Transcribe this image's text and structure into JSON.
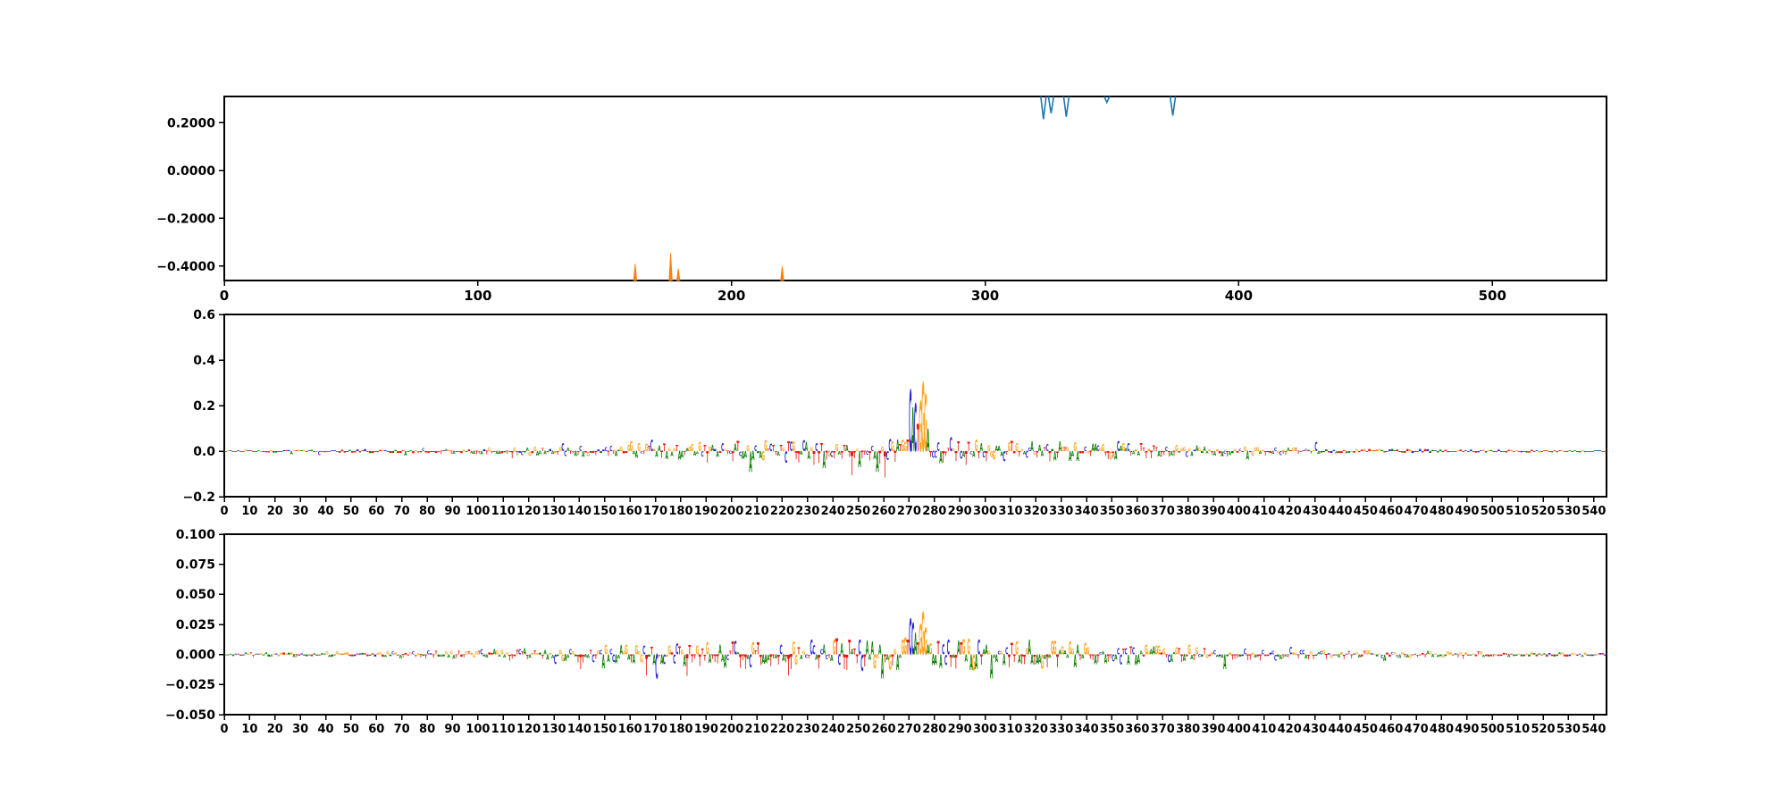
{
  "figure": {
    "title": "",
    "background": "#ffffff",
    "text_color": "#000000",
    "spine_color": "#000000"
  },
  "chart_data": {
    "type": "area",
    "description": "Three stacked panels: clipped importance traces (top) and two DNA sequence-attribution letter logos (middle, bottom)",
    "letter_colors": {
      "A": "#0b8000",
      "C": "#2222d0",
      "G": "#ffa41b",
      "T": "#e8160c"
    },
    "subplots": [
      {
        "kind": "spikes",
        "xlim": [
          0,
          545
        ],
        "ylim": [
          -0.46,
          0.31
        ],
        "xticks": [
          0,
          100,
          200,
          300,
          400,
          500
        ],
        "yticks": [
          0.2,
          0.0,
          -0.2,
          -0.4
        ],
        "ytick_labels": [
          "0.2000",
          "0.0000",
          "−0.2000",
          "−0.4000"
        ],
        "xtick_font": 15,
        "ytick_font": 14,
        "series": [
          {
            "name": "blue-trace-clipped-top",
            "color": "#1f77b4",
            "clip": "top",
            "dips": [
              {
                "x": 323,
                "v": 0.215
              },
              {
                "x": 326,
                "v": 0.24
              },
              {
                "x": 332,
                "v": 0.225
              },
              {
                "x": 348,
                "v": 0.285
              },
              {
                "x": 374,
                "v": 0.23
              }
            ]
          },
          {
            "name": "orange-trace-clipped-bottom",
            "color": "#ff7f0e",
            "clip": "bottom",
            "spikes": [
              {
                "x": 162,
                "v": -0.39
              },
              {
                "x": 176,
                "v": -0.345
              },
              {
                "x": 179,
                "v": -0.41
              },
              {
                "x": 220,
                "v": -0.4
              }
            ]
          }
        ]
      },
      {
        "kind": "logo",
        "xlim": [
          0,
          545
        ],
        "ylim": [
          -0.2,
          0.6
        ],
        "xticks": [
          0,
          10,
          20,
          30,
          40,
          50,
          60,
          70,
          80,
          90,
          100,
          110,
          120,
          130,
          140,
          150,
          160,
          170,
          180,
          190,
          200,
          210,
          220,
          230,
          240,
          250,
          260,
          270,
          280,
          290,
          300,
          310,
          320,
          330,
          340,
          350,
          360,
          370,
          380,
          390,
          400,
          410,
          420,
          430,
          440,
          450,
          460,
          470,
          480,
          490,
          500,
          510,
          520,
          530,
          540
        ],
        "yticks": [
          0.6,
          0.4,
          0.2,
          0.0,
          -0.2
        ],
        "ytick_labels": [
          "0.6",
          "0.4",
          "0.2",
          "0.0",
          "−0.2"
        ],
        "xtick_font": 13,
        "ytick_font": 14,
        "noise": {
          "seed": 11,
          "len": 545,
          "center": 265,
          "sigma": 130,
          "base": 0.003,
          "mid": 0.03,
          "spike_chance": 0.035,
          "spike_mult": 2.8,
          "max": 0.115
        },
        "peaks": [
          [
            133,
            "C",
            0.035
          ],
          [
            160,
            "G",
            0.045
          ],
          [
            163,
            "G",
            0.035
          ],
          [
            168,
            "C",
            0.05
          ],
          [
            190,
            "T",
            -0.05
          ],
          [
            207,
            "A",
            -0.09
          ],
          [
            232,
            "T",
            -0.06
          ],
          [
            236,
            "A",
            -0.075
          ],
          [
            247,
            "T",
            -0.105
          ],
          [
            250,
            "A",
            -0.07
          ],
          [
            257,
            "A",
            -0.09
          ],
          [
            267,
            "G",
            0.05
          ],
          [
            268,
            "G",
            0.04
          ],
          [
            269,
            "T",
            0.05
          ],
          [
            270,
            "C",
            0.27
          ],
          [
            271,
            "A",
            0.19
          ],
          [
            272,
            "C",
            0.21
          ],
          [
            273,
            "T",
            0.12
          ],
          [
            274,
            "G",
            0.22
          ],
          [
            275,
            "G",
            0.3
          ],
          [
            276,
            "G",
            0.25
          ],
          [
            277,
            "A",
            0.1
          ],
          [
            280,
            "C",
            -0.03
          ],
          [
            283,
            "T",
            -0.05
          ],
          [
            286,
            "C",
            0.06
          ],
          [
            292,
            "T",
            -0.06
          ],
          [
            296,
            "G",
            0.05
          ],
          [
            300,
            "T",
            -0.045
          ],
          [
            352,
            "C",
            0.045
          ],
          [
            430,
            "C",
            0.04
          ]
        ]
      },
      {
        "kind": "logo",
        "xlim": [
          0,
          545
        ],
        "ylim": [
          -0.05,
          0.1
        ],
        "xticks": [
          0,
          10,
          20,
          30,
          40,
          50,
          60,
          70,
          80,
          90,
          100,
          110,
          120,
          130,
          140,
          150,
          160,
          170,
          180,
          190,
          200,
          210,
          220,
          230,
          240,
          250,
          260,
          270,
          280,
          290,
          300,
          310,
          320,
          330,
          340,
          350,
          360,
          370,
          380,
          390,
          400,
          410,
          420,
          430,
          440,
          450,
          460,
          470,
          480,
          490,
          500,
          510,
          520,
          530,
          540
        ],
        "yticks": [
          0.1,
          0.075,
          0.05,
          0.025,
          0.0,
          -0.025,
          -0.05
        ],
        "ytick_labels": [
          "0.100",
          "0.075",
          "0.050",
          "0.025",
          "0.000",
          "−0.025",
          "−0.050"
        ],
        "xtick_font": 13,
        "ytick_font": 14,
        "noise": {
          "seed": 23,
          "len": 545,
          "center": 265,
          "sigma": 130,
          "base": 0.0011,
          "mid": 0.0072,
          "spike_chance": 0.03,
          "spike_mult": 2.4,
          "max": 0.02
        },
        "peaks": [
          [
            130,
            "C",
            -0.008
          ],
          [
            140,
            "T",
            -0.012
          ],
          [
            150,
            "G",
            0.008
          ],
          [
            170,
            "C",
            -0.02
          ],
          [
            190,
            "G",
            0.01
          ],
          [
            195,
            "A",
            0.008
          ],
          [
            205,
            "T",
            -0.012
          ],
          [
            210,
            "T",
            0.01
          ],
          [
            215,
            "T",
            -0.01
          ],
          [
            240,
            "G",
            0.012
          ],
          [
            244,
            "T",
            -0.012
          ],
          [
            252,
            "T",
            -0.01
          ],
          [
            267,
            "G",
            0.012
          ],
          [
            268,
            "G",
            0.014
          ],
          [
            269,
            "T",
            0.012
          ],
          [
            270,
            "C",
            0.03
          ],
          [
            271,
            "C",
            0.026
          ],
          [
            272,
            "A",
            0.018
          ],
          [
            273,
            "T",
            0.01
          ],
          [
            274,
            "G",
            0.025
          ],
          [
            275,
            "G",
            0.035
          ],
          [
            276,
            "G",
            0.022
          ],
          [
            277,
            "A",
            0.008
          ],
          [
            285,
            "C",
            0.012
          ],
          [
            293,
            "G",
            0.013
          ],
          [
            300,
            "A",
            0.008
          ],
          [
            380,
            "G",
            0.008
          ],
          [
            420,
            "C",
            0.006
          ]
        ]
      }
    ]
  }
}
